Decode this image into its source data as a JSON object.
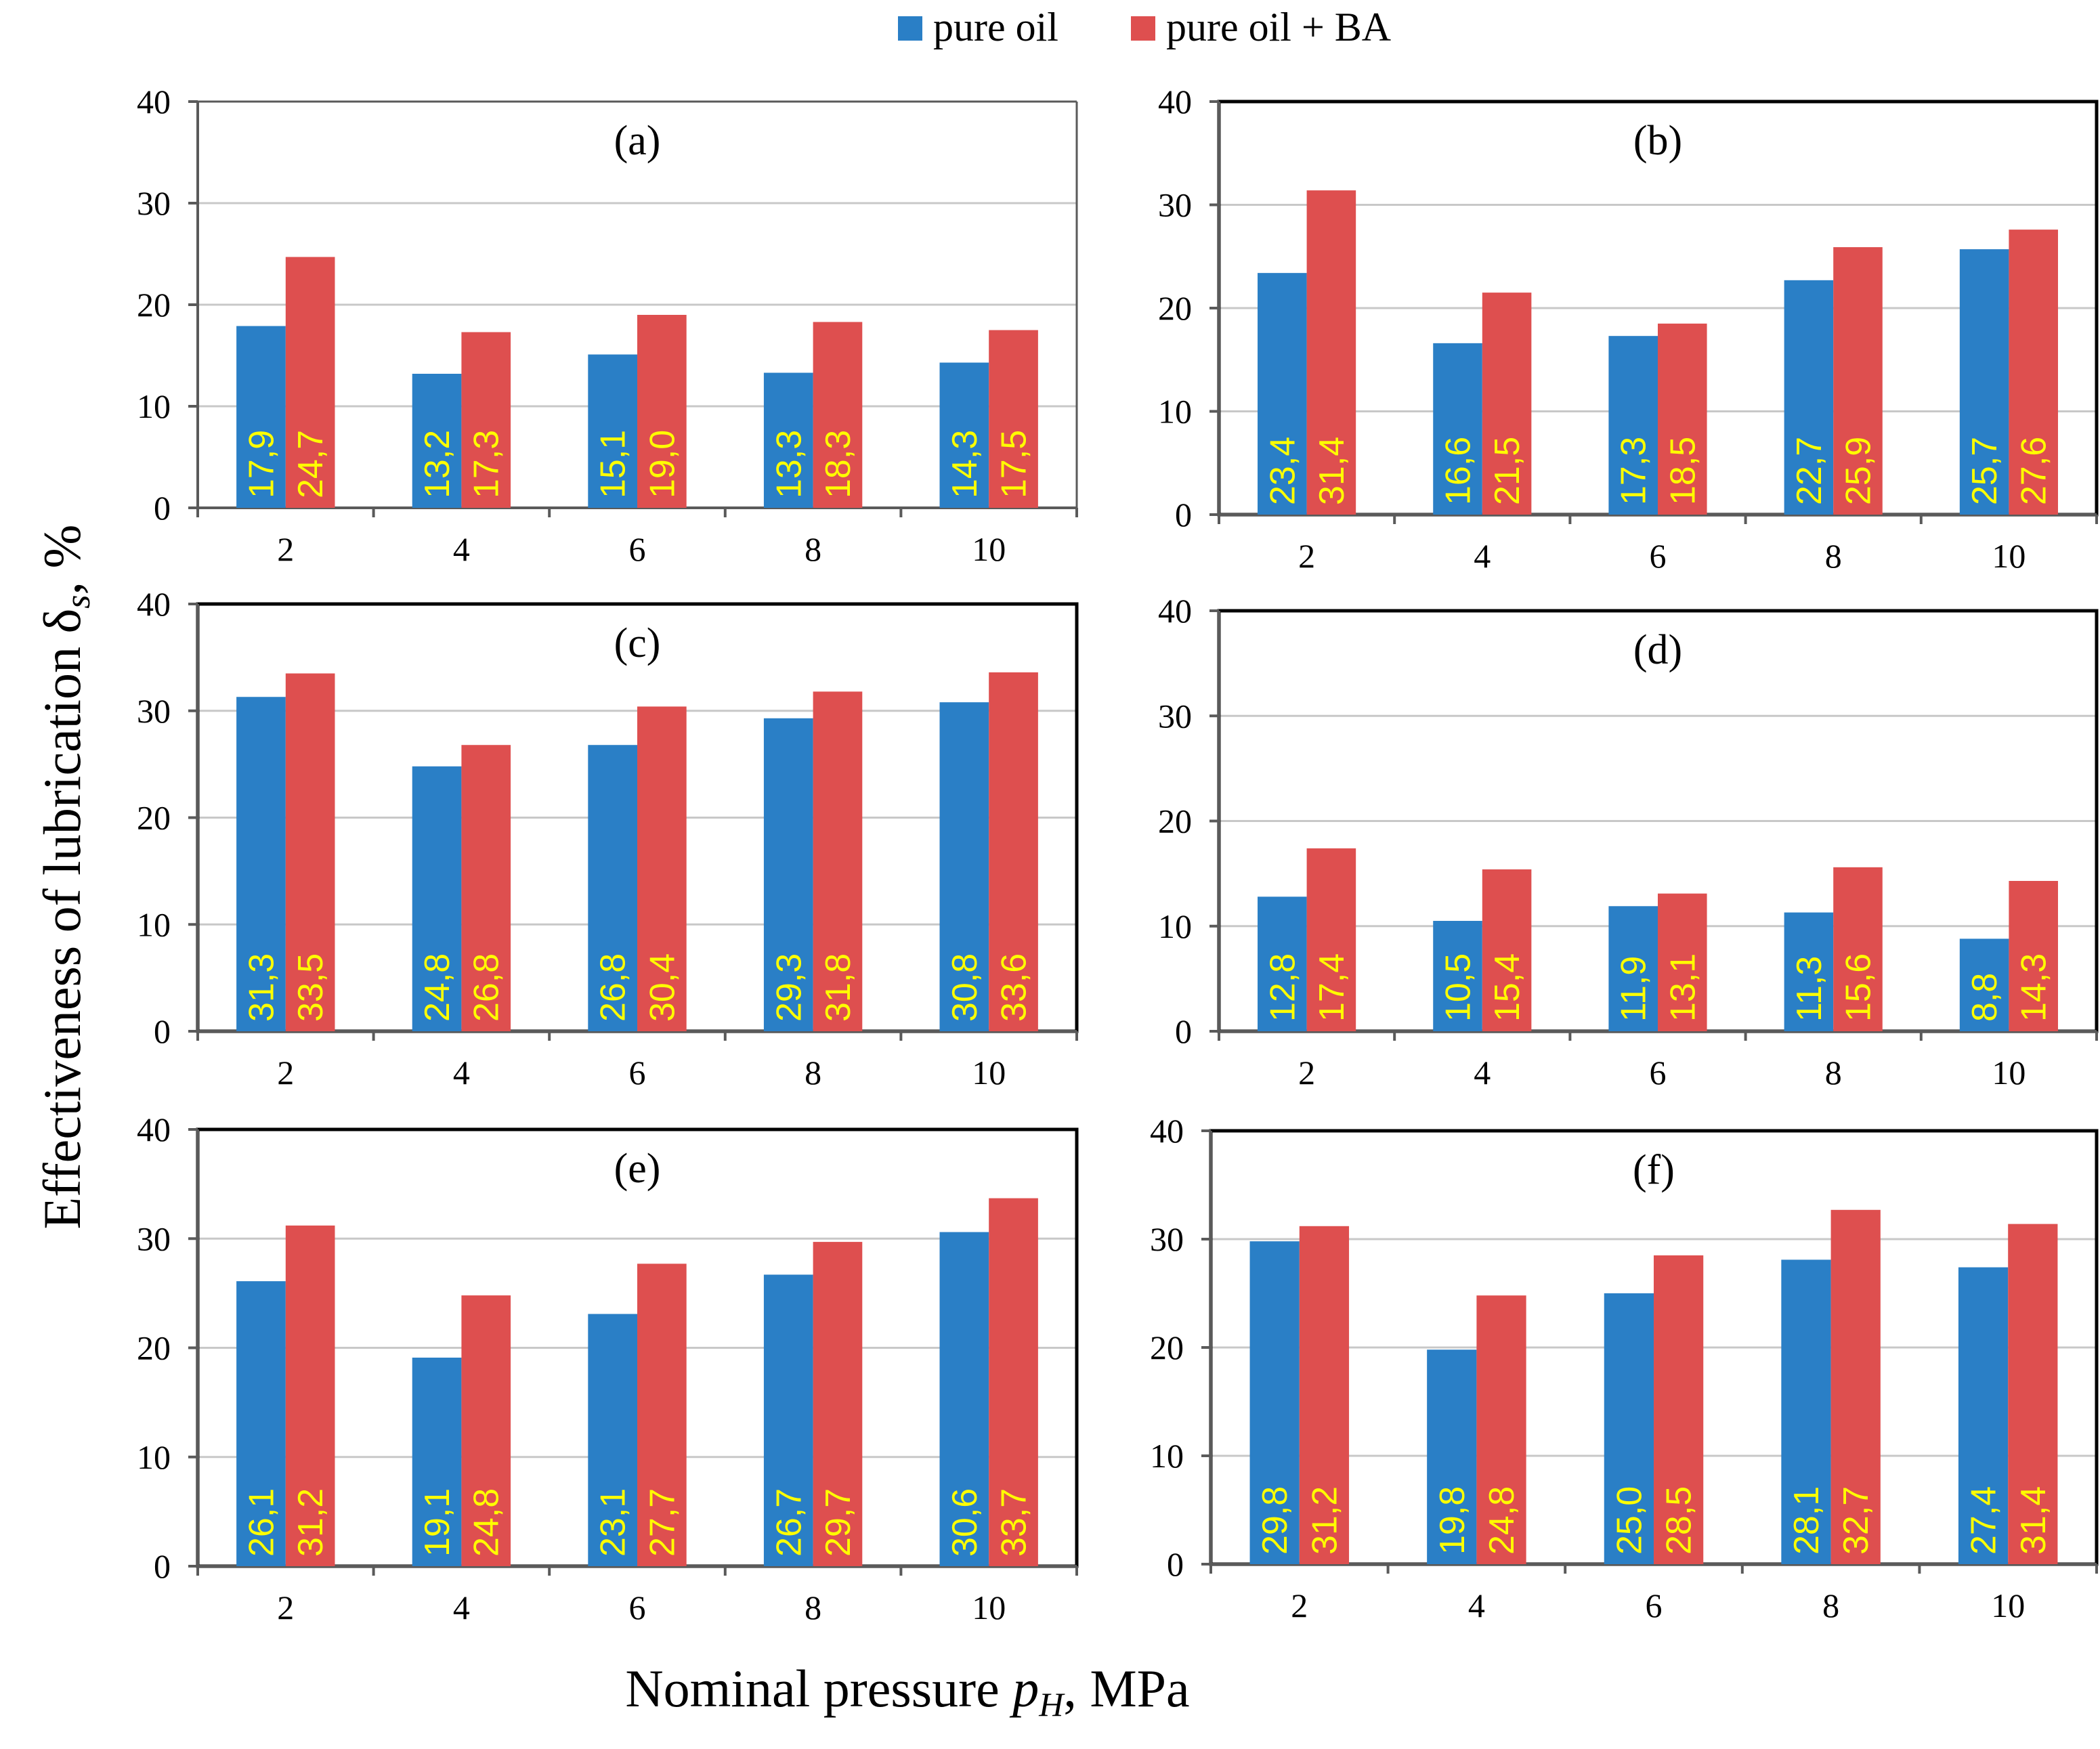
{
  "chart_data": [
    {
      "type": "bar",
      "panel": "(a)",
      "categories": [
        "2",
        "4",
        "6",
        "8",
        "10"
      ],
      "yticks": [
        "0",
        "10",
        "20",
        "30",
        "40"
      ],
      "ylim": [
        0,
        40
      ],
      "series": [
        {
          "name": "pure oil",
          "values": [
            17.9,
            13.2,
            15.1,
            13.3,
            14.3
          ],
          "labels": [
            "17,9",
            "13,2",
            "15,1",
            "13,3",
            "14,3"
          ]
        },
        {
          "name": "pure oil + BA",
          "values": [
            24.7,
            17.3,
            19.0,
            18.3,
            17.5
          ],
          "labels": [
            "24,7",
            "17,3",
            "19,0",
            "18,3",
            "17,5"
          ]
        }
      ]
    },
    {
      "type": "bar",
      "panel": "(b)",
      "categories": [
        "2",
        "4",
        "6",
        "8",
        "10"
      ],
      "yticks": [
        "0",
        "10",
        "20",
        "30",
        "40"
      ],
      "ylim": [
        0,
        40
      ],
      "series": [
        {
          "name": "pure oil",
          "values": [
            23.4,
            16.6,
            17.3,
            22.7,
            25.7
          ],
          "labels": [
            "23,4",
            "16,6",
            "17,3",
            "22,7",
            "25,7"
          ]
        },
        {
          "name": "pure oil + BA",
          "values": [
            31.4,
            21.5,
            18.5,
            25.9,
            27.6
          ],
          "labels": [
            "31,4",
            "21,5",
            "18,5",
            "25,9",
            "27,6"
          ]
        }
      ]
    },
    {
      "type": "bar",
      "panel": "(c)",
      "categories": [
        "2",
        "4",
        "6",
        "8",
        "10"
      ],
      "yticks": [
        "0",
        "10",
        "20",
        "30",
        "40"
      ],
      "ylim": [
        0,
        40
      ],
      "series": [
        {
          "name": "pure oil",
          "values": [
            31.3,
            24.8,
            26.8,
            29.3,
            30.8
          ],
          "labels": [
            "31,3",
            "24,8",
            "26,8",
            "29,3",
            "30,8"
          ]
        },
        {
          "name": "pure oil + BA",
          "values": [
            33.5,
            26.8,
            30.4,
            31.8,
            33.6
          ],
          "labels": [
            "33,5",
            "26,8",
            "30,4",
            "31,8",
            "33,6"
          ]
        }
      ]
    },
    {
      "type": "bar",
      "panel": "(d)",
      "categories": [
        "2",
        "4",
        "6",
        "8",
        "10"
      ],
      "yticks": [
        "0",
        "10",
        "20",
        "30",
        "40"
      ],
      "ylim": [
        0,
        40
      ],
      "series": [
        {
          "name": "pure oil",
          "values": [
            12.8,
            10.5,
            11.9,
            11.3,
            8.8
          ],
          "labels": [
            "12,8",
            "10,5",
            "11,9",
            "11,3",
            "8,8"
          ]
        },
        {
          "name": "pure oil + BA",
          "values": [
            17.4,
            15.4,
            13.1,
            15.6,
            14.3
          ],
          "labels": [
            "17,4",
            "15,4",
            "13,1",
            "15,6",
            "14,3"
          ]
        }
      ]
    },
    {
      "type": "bar",
      "panel": "(e)",
      "categories": [
        "2",
        "4",
        "6",
        "8",
        "10"
      ],
      "yticks": [
        "0",
        "10",
        "20",
        "30",
        "40"
      ],
      "ylim": [
        0,
        40
      ],
      "series": [
        {
          "name": "pure oil",
          "values": [
            26.1,
            19.1,
            23.1,
            26.7,
            30.6
          ],
          "labels": [
            "26,1",
            "19,1",
            "23,1",
            "26,7",
            "30,6"
          ]
        },
        {
          "name": "pure oil + BA",
          "values": [
            31.2,
            24.8,
            27.7,
            29.7,
            33.7
          ],
          "labels": [
            "31,2",
            "24,8",
            "27,7",
            "29,7",
            "33,7"
          ]
        }
      ]
    },
    {
      "type": "bar",
      "panel": "(f)",
      "categories": [
        "2",
        "4",
        "6",
        "8",
        "10"
      ],
      "yticks": [
        "0",
        "10",
        "20",
        "30",
        "40"
      ],
      "ylim": [
        0,
        40
      ],
      "series": [
        {
          "name": "pure oil",
          "values": [
            29.8,
            19.8,
            25.0,
            28.1,
            27.4
          ],
          "labels": [
            "29,8",
            "19,8",
            "25,0",
            "28,1",
            "27,4"
          ]
        },
        {
          "name": "pure oil + BA",
          "values": [
            31.2,
            24.8,
            28.5,
            32.7,
            31.4
          ],
          "labels": [
            "31,2",
            "24,8",
            "28,5",
            "32,7",
            "31,4"
          ]
        }
      ]
    }
  ],
  "legend": [
    {
      "name": "pure oil",
      "color": "#2a7fc6"
    },
    {
      "name": "pure oil + BA",
      "color": "#de4f4f"
    }
  ],
  "axes": {
    "ylabel_main": "Effectiveness of lubrication δ",
    "ylabel_sub": "s",
    "ylabel_tail": ", %",
    "xlabel_main": "Nominal pressure ",
    "xlabel_var": "p",
    "xlabel_sub": "H",
    "xlabel_tail": ", MPa"
  }
}
